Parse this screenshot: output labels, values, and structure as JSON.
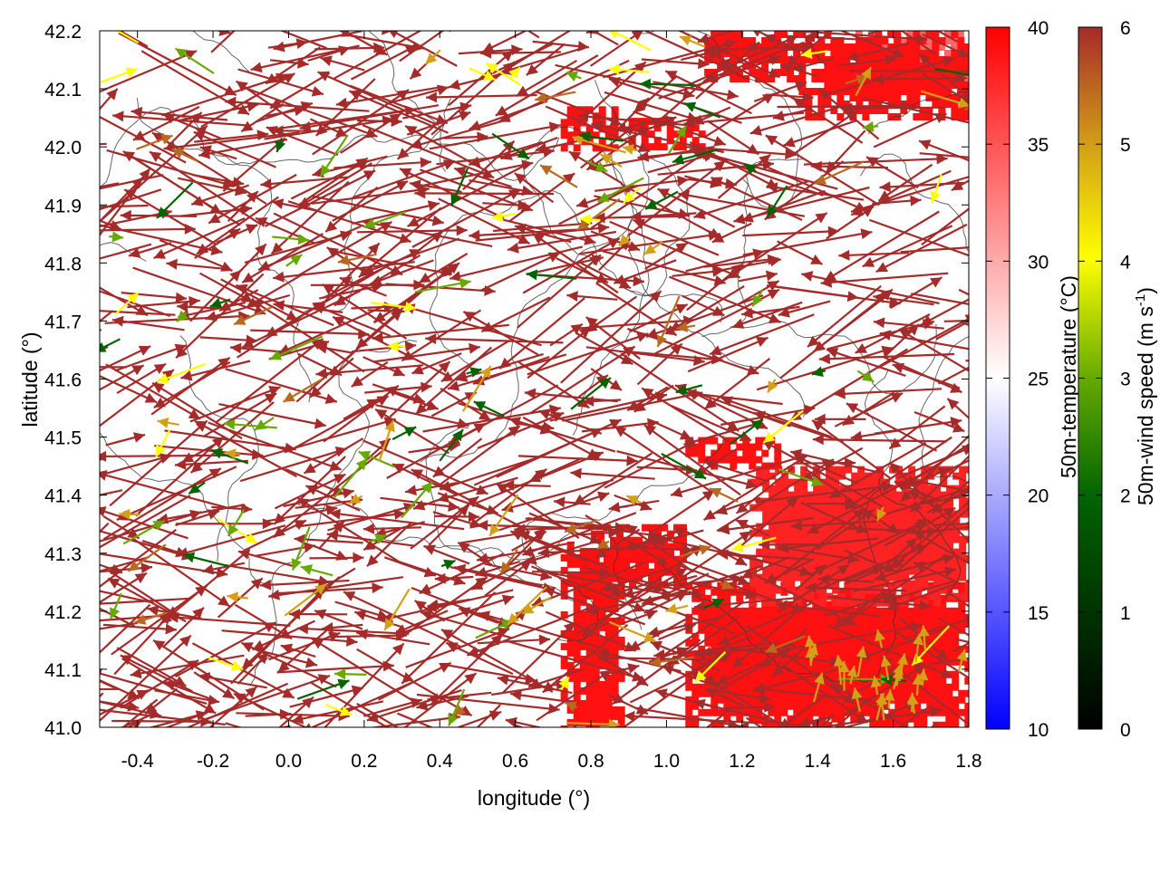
{
  "chart_data": {
    "type": "vector_field_map",
    "description_series": [
      {
        "name": "50m-temperature",
        "kind": "heatmap",
        "units": "°C"
      },
      {
        "name": "50m-wind speed",
        "kind": "wind vectors",
        "units": "m s-1"
      },
      {
        "name": "terrain",
        "kind": "contour lines"
      }
    ],
    "xlabel": "longitude (°)",
    "ylabel": "latitude (°)",
    "xlim": [
      -0.5,
      1.8
    ],
    "ylim": [
      41.0,
      42.2
    ],
    "xticks": [
      -0.4,
      -0.2,
      0.0,
      0.2,
      0.4,
      0.6,
      0.8,
      1.0,
      1.2,
      1.4,
      1.6,
      1.8
    ],
    "xtick_labels": [
      "-0.4",
      "-0.2",
      "0.0",
      "0.2",
      "0.4",
      "0.6",
      "0.8",
      "1.0",
      "1.2",
      "1.4",
      "1.6",
      "1.8"
    ],
    "yticks": [
      41.0,
      41.1,
      41.2,
      41.3,
      41.4,
      41.5,
      41.6,
      41.7,
      41.8,
      41.9,
      42.0,
      42.1,
      42.2
    ],
    "ytick_labels": [
      "41.0",
      "41.1",
      "41.2",
      "41.3",
      "41.4",
      "41.5",
      "41.6",
      "41.7",
      "41.8",
      "41.9",
      "42.0",
      "42.1",
      "42.2"
    ],
    "temperature_colorbar": {
      "label": "50m-temperature (°C)",
      "range": [
        10,
        40
      ],
      "ticks": [
        10,
        15,
        20,
        25,
        30,
        35,
        40
      ],
      "tick_labels": [
        "10",
        "15",
        "20",
        "25",
        "30",
        "35",
        "40"
      ],
      "colors": [
        "#0000ff",
        "#ffffff",
        "#ff0000"
      ]
    },
    "wind_colorbar": {
      "label_main": "50m-wind speed (m s",
      "label_sup": "-1",
      "label_end": ")",
      "range": [
        0,
        6
      ],
      "ticks": [
        0,
        1,
        2,
        3,
        4,
        5,
        6
      ],
      "tick_labels": [
        "0",
        "1",
        "2",
        "3",
        "4",
        "5",
        "6"
      ],
      "colors": [
        "#000000",
        "#006400",
        "#66aa00",
        "#ffff00",
        "#d4a017",
        "#b86a20",
        "#a52a2a"
      ]
    },
    "warm_regions": [
      {
        "lon": [
          0.72,
          0.88
        ],
        "lat": [
          41.0,
          41.32
        ],
        "temp": 39
      },
      {
        "lon": [
          0.8,
          1.05
        ],
        "lat": [
          41.25,
          41.35
        ],
        "temp": 39
      },
      {
        "lon": [
          1.05,
          1.8
        ],
        "lat": [
          41.0,
          41.25
        ],
        "temp": 39
      },
      {
        "lon": [
          1.22,
          1.8
        ],
        "lat": [
          41.22,
          41.45
        ],
        "temp": 38
      },
      {
        "lon": [
          1.5,
          1.8
        ],
        "lat": [
          42.1,
          42.2
        ],
        "temp": 34
      },
      {
        "lon": [
          1.35,
          1.8
        ],
        "lat": [
          42.05,
          42.2
        ],
        "temp": 39
      },
      {
        "lon": [
          1.1,
          1.35
        ],
        "lat": [
          42.12,
          42.2
        ],
        "temp": 39
      },
      {
        "lon": [
          0.72,
          0.87
        ],
        "lat": [
          42.0,
          42.07
        ],
        "temp": 39
      },
      {
        "lon": [
          0.9,
          1.1
        ],
        "lat": [
          42.0,
          42.05
        ],
        "temp": 39
      },
      {
        "lon": [
          1.05,
          1.3
        ],
        "lat": [
          41.45,
          41.5
        ],
        "temp": 39
      }
    ]
  }
}
